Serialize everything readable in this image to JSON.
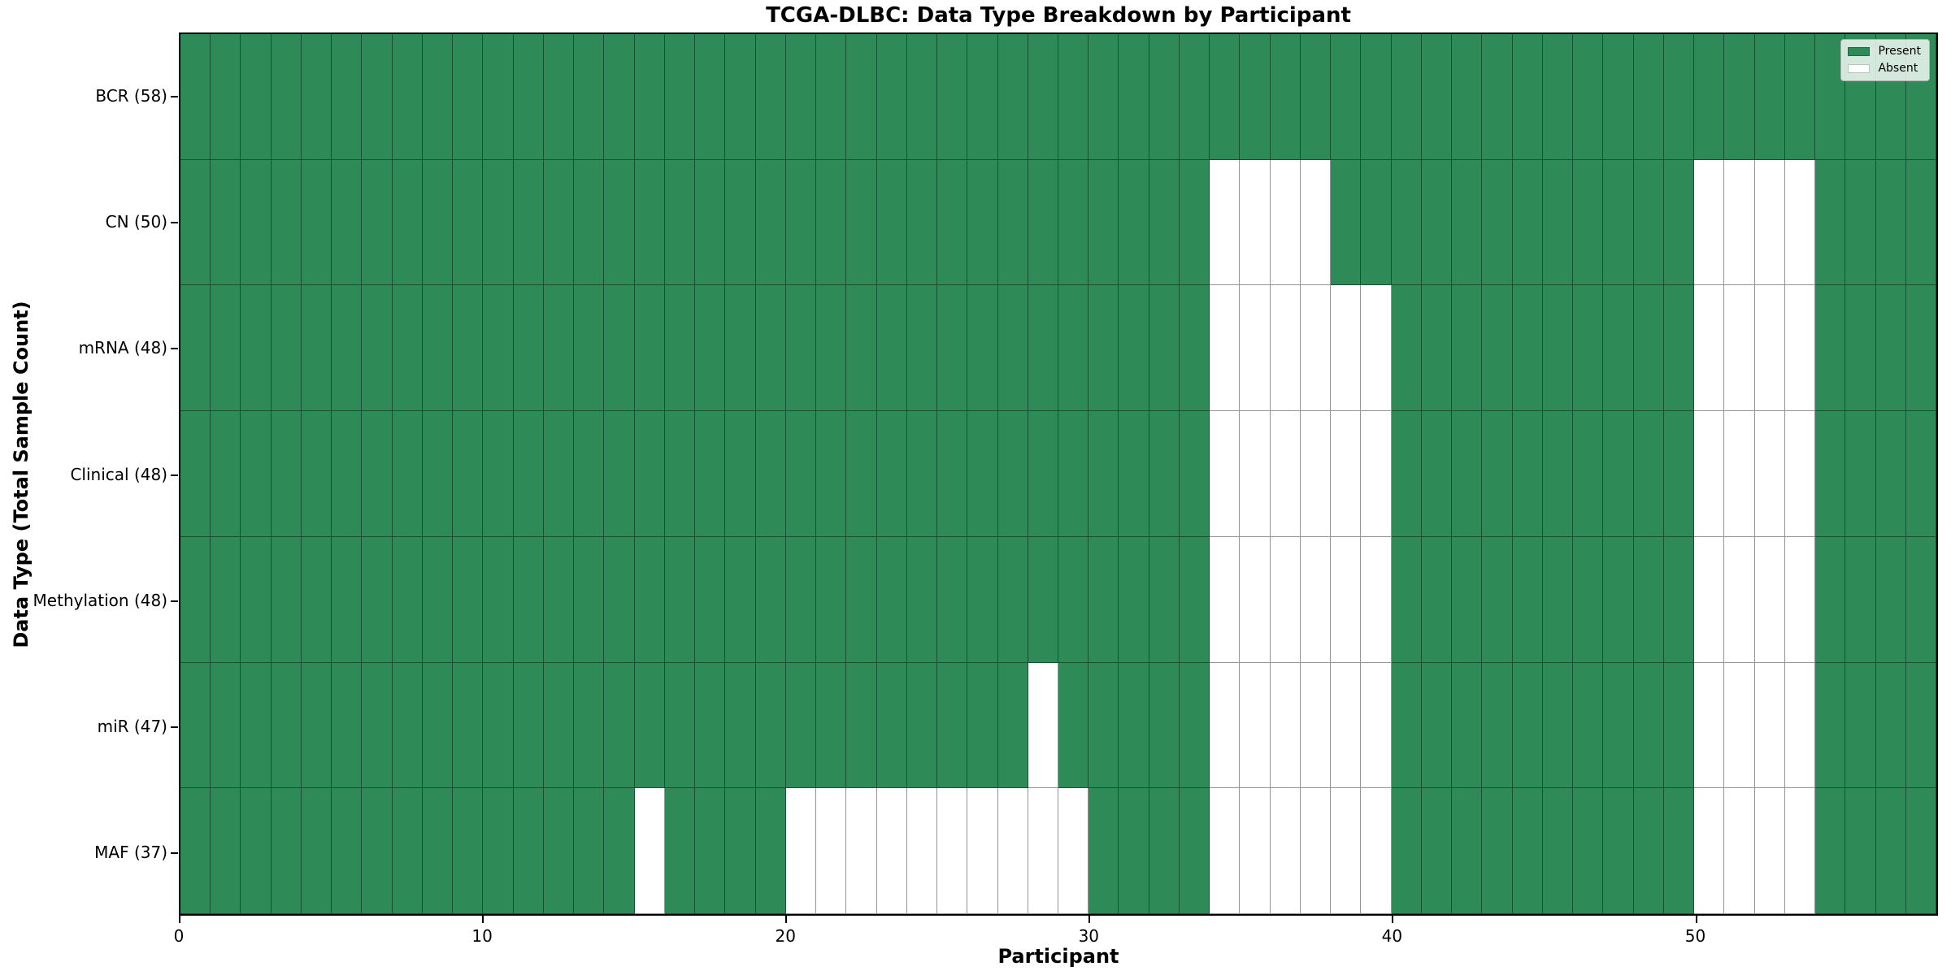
{
  "header": {
    "title": "TCGA-DLBC: Data Type Breakdown by Participant"
  },
  "colors": {
    "present": "#2e8b57",
    "absent": "#ffffff",
    "grid_line": "rgba(0,0,0,0.42)",
    "frame": "#000000",
    "legend_bg": "rgba(255,255,255,0.8)"
  },
  "legend": {
    "present_label": "Present",
    "absent_label": "Absent"
  },
  "chart_data": {
    "type": "heatmap",
    "title": "TCGA-DLBC: Data Type Breakdown by Participant",
    "xlabel": "Participant",
    "ylabel": "Data Type (Total Sample Count)",
    "x_ticks": [
      0,
      10,
      20,
      30,
      40,
      50
    ],
    "x_range": [
      0,
      58
    ],
    "n_participants": 58,
    "grid": true,
    "legend_position": "upper right",
    "value_encoding": {
      "present": 1,
      "absent": 0
    },
    "rows": [
      {
        "label": "BCR (58)",
        "data_type": "BCR",
        "total": 58,
        "absent_participants": []
      },
      {
        "label": "CN (50)",
        "data_type": "CN",
        "total": 50,
        "absent_participants": [
          34,
          35,
          36,
          37,
          50,
          51,
          52,
          53
        ]
      },
      {
        "label": "mRNA (48)",
        "data_type": "mRNA",
        "total": 48,
        "absent_participants": [
          34,
          35,
          36,
          37,
          38,
          39,
          50,
          51,
          52,
          53
        ]
      },
      {
        "label": "Clinical (48)",
        "data_type": "Clinical",
        "total": 48,
        "absent_participants": [
          34,
          35,
          36,
          37,
          38,
          39,
          50,
          51,
          52,
          53
        ]
      },
      {
        "label": "Methylation (48)",
        "data_type": "Methylation",
        "total": 48,
        "absent_participants": [
          34,
          35,
          36,
          37,
          38,
          39,
          50,
          51,
          52,
          53
        ]
      },
      {
        "label": "miR (47)",
        "data_type": "miR",
        "total": 47,
        "absent_participants": [
          28,
          34,
          35,
          36,
          37,
          38,
          39,
          50,
          51,
          52,
          53
        ]
      },
      {
        "label": "MAF (37)",
        "data_type": "MAF",
        "total": 37,
        "absent_participants": [
          15,
          20,
          21,
          22,
          23,
          24,
          25,
          26,
          27,
          28,
          29,
          34,
          35,
          36,
          37,
          38,
          39,
          50,
          51,
          52,
          53
        ]
      }
    ]
  }
}
